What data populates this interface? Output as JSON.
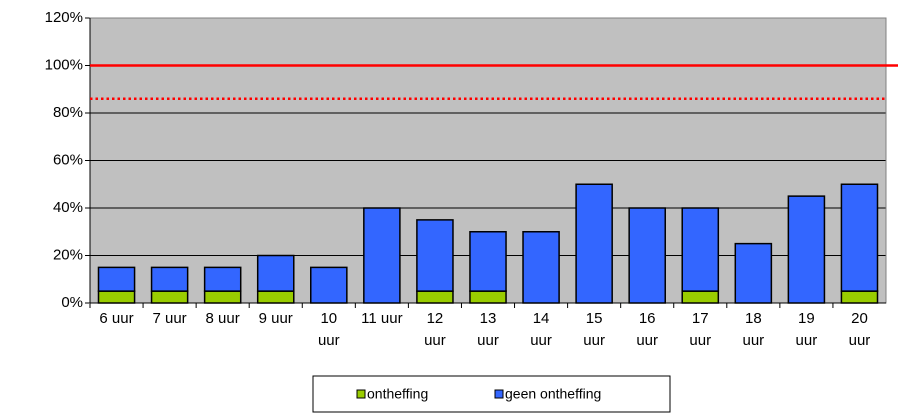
{
  "chart_data": {
    "type": "stacked_bar",
    "categories": [
      "6 uur",
      "7 uur",
      "8 uur",
      "9 uur",
      "10 uur",
      "11 uur",
      "12 uur",
      "13 uur",
      "14 uur",
      "15 uur",
      "16 uur",
      "17 uur",
      "18 uur",
      "19 uur",
      "20 uur"
    ],
    "series": [
      {
        "name": "ontheffing",
        "color": "#99cc00",
        "values": [
          5,
          5,
          5,
          5,
          0,
          0,
          5,
          5,
          0,
          0,
          0,
          5,
          0,
          0,
          5
        ]
      },
      {
        "name": "geen ontheffing",
        "color": "#3366ff",
        "values": [
          10,
          10,
          10,
          15,
          15,
          40,
          30,
          25,
          30,
          50,
          40,
          35,
          25,
          45,
          45
        ]
      }
    ],
    "reference_lines": [
      {
        "value": 100,
        "color": "#ff0000",
        "style": "solid"
      },
      {
        "value": 86,
        "color": "#ff0000",
        "style": "dotted"
      }
    ],
    "ylim": [
      0,
      120
    ],
    "yticks": [
      {
        "value": 0,
        "label": "0%"
      },
      {
        "value": 20,
        "label": "20%"
      },
      {
        "value": 40,
        "label": "40%"
      },
      {
        "value": 60,
        "label": "60%"
      },
      {
        "value": 80,
        "label": "80%"
      },
      {
        "value": 100,
        "label": "100%"
      },
      {
        "value": 120,
        "label": "120%"
      }
    ],
    "grid": true,
    "legend": "bottom"
  }
}
